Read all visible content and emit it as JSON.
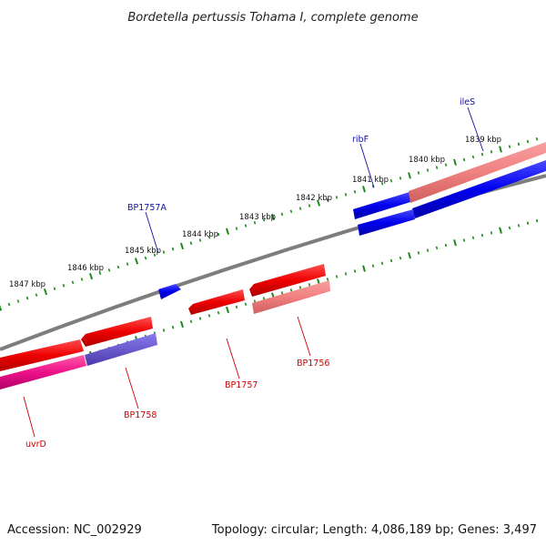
{
  "title": "Bordetella pertussis Tohama I, complete genome",
  "accession": "Accession: NC_002929",
  "topology": "Topology: circular; Length: 4,086,189 bp; Genes: 3,497",
  "scale_labels": [
    "1839 kbp",
    "1840 kbp",
    "1841 kbp",
    "1842 kbp",
    "1843 kbp",
    "1844 kbp",
    "1845 kbp",
    "1846 kbp",
    "1847 kbp"
  ],
  "genes": {
    "ileS": "ileS",
    "ribF": "ribF",
    "BP1757A": "BP1757A",
    "BP1756": "BP1756",
    "BP1757": "BP1757",
    "BP1758": "BP1758",
    "uvrD": "uvrD"
  },
  "colors": {
    "forward_gene": "#0000ee",
    "reverse_gene": "#ee0000",
    "reverse_gene_light": "#f08080",
    "pink_gene": "#ee1188",
    "purple_gene": "#6a5acd",
    "backbone": "#808080",
    "tick": "#1a8a1a"
  }
}
